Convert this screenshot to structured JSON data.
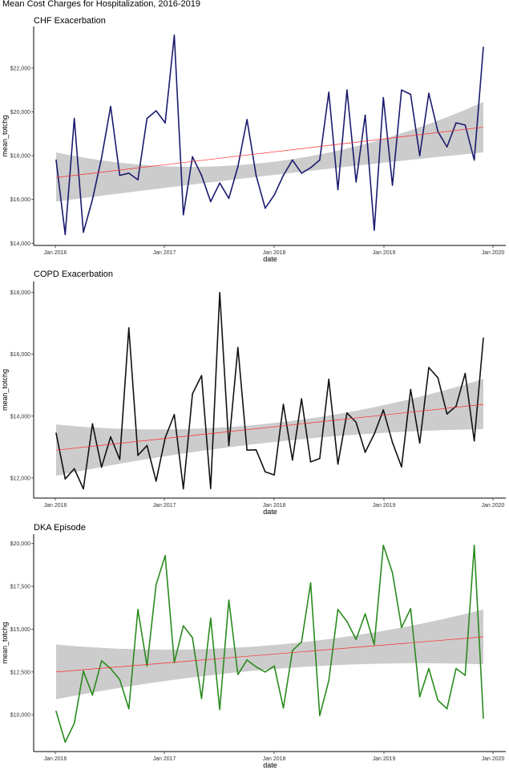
{
  "title": "Mean Cost Charges for Hospitalization, 2016-2019",
  "chart_data": [
    {
      "type": "line",
      "title": "CHF Exacerbation",
      "xlabel": "date",
      "ylabel": "mean_totchg",
      "x_ticks": [
        "Jan 2016",
        "Jan 2017",
        "Jan 2018",
        "Jan 2019",
        "Jan 2020"
      ],
      "y_ticks": [
        "$14,000",
        "$16,000",
        "$18,000",
        "$20,000",
        "$22,000"
      ],
      "y_tick_values": [
        14000,
        16000,
        18000,
        20000,
        22000
      ],
      "ylim": [
        13900,
        23900
      ],
      "line_color": "#1a1a6e",
      "trend_color": "#ff2a2a",
      "band_color": "#cccccc",
      "trend": [
        17000,
        19300
      ],
      "band_lower": [
        15900,
        18150
      ],
      "band_upper": [
        18150,
        20450
      ],
      "band_mid_low": 17100,
      "band_mid_high": 17700,
      "values": [
        17800,
        14400,
        19700,
        14500,
        16000,
        17900,
        20250,
        17100,
        17200,
        16900,
        19700,
        20050,
        19500,
        23500,
        15300,
        17950,
        17100,
        15900,
        16750,
        16050,
        17500,
        19650,
        17100,
        15600,
        16200,
        17100,
        17800,
        17200,
        17450,
        17800,
        20900,
        16450,
        21000,
        16800,
        19850,
        14600,
        20650,
        16650,
        21000,
        20800,
        18000,
        20850,
        19100,
        18400,
        19500,
        19400,
        17800,
        22950
      ]
    },
    {
      "type": "line",
      "title": "COPD Exacerbation",
      "xlabel": "date",
      "ylabel": "mean_totchg",
      "x_ticks": [
        "Jan 2016",
        "Jan 2017",
        "Jan 2018",
        "Jan 2019",
        "Jan 2020"
      ],
      "y_ticks": [
        "$12,000",
        "$14,000",
        "$16,000",
        "$18,000"
      ],
      "y_tick_values": [
        12000,
        14000,
        16000,
        18000
      ],
      "ylim": [
        11350,
        18350
      ],
      "line_color": "#111111",
      "trend_color": "#ff2a2a",
      "band_color": "#cccccc",
      "trend": [
        12900,
        14380
      ],
      "band_lower": [
        12070,
        13580
      ],
      "band_upper": [
        13730,
        15200
      ],
      "band_mid_low": 13150,
      "band_mid_high": 13760,
      "values": [
        13450,
        11970,
        12300,
        11650,
        13750,
        12350,
        13330,
        12600,
        16850,
        12730,
        13050,
        11900,
        13300,
        14050,
        11650,
        14720,
        15310,
        11660,
        17990,
        13050,
        16220,
        12900,
        12910,
        12200,
        12100,
        14380,
        12580,
        14560,
        12520,
        12630,
        15190,
        12450,
        14100,
        13800,
        12830,
        13420,
        14200,
        13150,
        12360,
        14860,
        13130,
        15570,
        15240,
        14070,
        14320,
        15380,
        13200,
        16520
      ]
    },
    {
      "type": "line",
      "title": "DKA Episode",
      "xlabel": "date",
      "ylabel": "mean_totchg",
      "x_ticks": [
        "Jan 2016",
        "Jan 2017",
        "Jan 2018",
        "Jan 2019",
        "Jan 2020"
      ],
      "y_ticks": [
        "$10,000",
        "$12,500",
        "$15,000",
        "$17,500",
        "$20,000"
      ],
      "y_tick_values": [
        10000,
        12500,
        15000,
        17500,
        20000
      ],
      "ylim": [
        7850,
        20550
      ],
      "line_color": "#2a8a1e",
      "trend_color": "#ff2a2a",
      "band_color": "#cccccc",
      "trend": [
        12500,
        14550
      ],
      "band_lower": [
        10900,
        12950
      ],
      "band_upper": [
        14100,
        16150
      ],
      "band_mid_low": 12650,
      "band_mid_high": 14050,
      "values": [
        10200,
        8400,
        9500,
        12550,
        11150,
        13150,
        12700,
        12050,
        10350,
        16150,
        12850,
        17600,
        19300,
        13050,
        15200,
        14500,
        10950,
        15650,
        10300,
        16700,
        12350,
        13200,
        12800,
        12500,
        12850,
        10400,
        13750,
        14250,
        17700,
        9950,
        12000,
        16150,
        15450,
        14400,
        15900,
        14100,
        19900,
        18300,
        15100,
        16200,
        11050,
        12700,
        10850,
        10350,
        12700,
        12300,
        19900,
        9800
      ]
    }
  ]
}
